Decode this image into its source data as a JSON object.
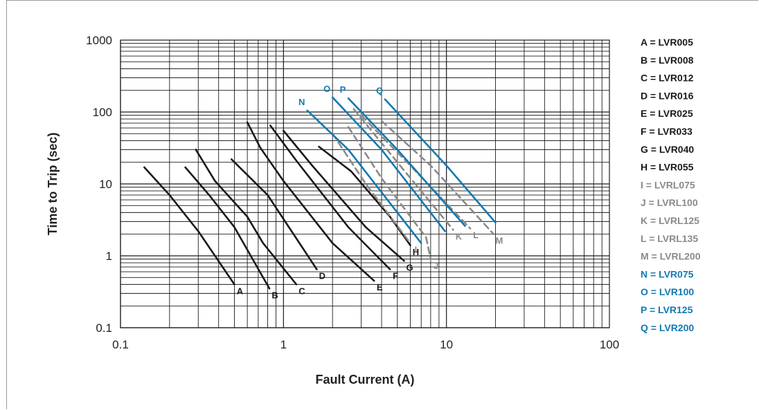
{
  "chart_data": {
    "type": "line",
    "x_scale": "log",
    "y_scale": "log",
    "xlim": [
      0.1,
      100
    ],
    "ylim": [
      0.1,
      1000
    ],
    "xlabel": "Fault Current (A)",
    "ylabel": "Time to Trip (sec)",
    "x_ticks": [
      "0.1",
      "1",
      "10",
      "100"
    ],
    "y_ticks": [
      "0.1",
      "1",
      "10",
      "100",
      "1000"
    ],
    "grid": true,
    "legend_position": "right",
    "colors": {
      "black": "#1a1a1a",
      "gray": "#8a8a8a",
      "blue": "#1279b2"
    },
    "series": [
      {
        "letter": "A",
        "legend": "A = LVR005",
        "color_group": "black",
        "dashed": false,
        "points": [
          [
            0.14,
            17
          ],
          [
            0.2,
            7
          ],
          [
            0.3,
            2.2
          ],
          [
            0.5,
            0.4
          ]
        ]
      },
      {
        "letter": "B",
        "legend": "B = LVR008",
        "color_group": "black",
        "dashed": false,
        "points": [
          [
            0.25,
            17
          ],
          [
            0.35,
            7
          ],
          [
            0.5,
            2.5
          ],
          [
            0.82,
            0.35
          ]
        ]
      },
      {
        "letter": "C",
        "legend": "C = LVR012",
        "color_group": "black",
        "dashed": false,
        "points": [
          [
            0.29,
            30
          ],
          [
            0.38,
            11
          ],
          [
            0.6,
            3.5
          ],
          [
            0.75,
            1.5
          ],
          [
            1.2,
            0.4
          ]
        ]
      },
      {
        "letter": "D",
        "legend": "D = LVR016",
        "color_group": "black",
        "dashed": false,
        "points": [
          [
            0.48,
            22
          ],
          [
            0.8,
            7
          ],
          [
            1.6,
            0.65
          ]
        ]
      },
      {
        "letter": "E",
        "legend": "E = LVR025",
        "color_group": "black",
        "dashed": false,
        "points": [
          [
            0.6,
            72
          ],
          [
            0.72,
            32
          ],
          [
            1.0,
            11
          ],
          [
            2.0,
            1.5
          ],
          [
            3.6,
            0.45
          ]
        ]
      },
      {
        "letter": "F",
        "legend": "F = LVR033",
        "color_group": "black",
        "dashed": false,
        "points": [
          [
            0.83,
            65
          ],
          [
            1.2,
            21
          ],
          [
            2.5,
            2.5
          ],
          [
            4.5,
            0.65
          ]
        ]
      },
      {
        "letter": "G",
        "legend": "G = LVR040",
        "color_group": "black",
        "dashed": false,
        "points": [
          [
            1.0,
            55
          ],
          [
            1.5,
            18
          ],
          [
            3.2,
            2.5
          ],
          [
            5.5,
            0.85
          ]
        ]
      },
      {
        "letter": "H",
        "legend": "H = LVR055",
        "color_group": "black",
        "dashed": false,
        "points": [
          [
            1.65,
            33
          ],
          [
            2.6,
            15
          ],
          [
            4.5,
            3.5
          ],
          [
            6.0,
            1.4
          ]
        ]
      },
      {
        "letter": "I",
        "legend": "I = LVRL075",
        "color_group": "gray",
        "dashed": true,
        "points": [
          [
            2.0,
            50
          ],
          [
            3.2,
            10
          ],
          [
            6.0,
            1.5
          ]
        ]
      },
      {
        "letter": "J",
        "legend": "J = LVRL100",
        "color_group": "gray",
        "dashed": true,
        "points": [
          [
            2.5,
            62
          ],
          [
            4.0,
            12
          ],
          [
            7.5,
            1.8
          ],
          [
            8.0,
            0.9
          ]
        ]
      },
      {
        "letter": "K",
        "legend": "K = LVRL125",
        "color_group": "gray",
        "dashed": true,
        "points": [
          [
            2.7,
            110
          ],
          [
            5.0,
            20
          ],
          [
            11.0,
            2.3
          ]
        ]
      },
      {
        "letter": "L",
        "legend": "L = LVRL135",
        "color_group": "gray",
        "dashed": true,
        "points": [
          [
            3.0,
            90
          ],
          [
            6.0,
            18
          ],
          [
            14.0,
            2.4
          ]
        ]
      },
      {
        "letter": "M",
        "legend": "M = LVRL200",
        "color_group": "gray",
        "dashed": true,
        "points": [
          [
            4.0,
            75
          ],
          [
            8.0,
            18
          ],
          [
            19.5,
            2.0
          ]
        ]
      },
      {
        "letter": "N",
        "legend": "N = LVR075",
        "color_group": "blue",
        "dashed": false,
        "points": [
          [
            1.4,
            105
          ],
          [
            2.5,
            30
          ],
          [
            7.0,
            1.5
          ]
        ]
      },
      {
        "letter": "O",
        "legend": "O = LVR100",
        "color_group": "blue",
        "dashed": false,
        "points": [
          [
            2.0,
            160
          ],
          [
            4.0,
            30
          ],
          [
            9.8,
            2.2
          ]
        ]
      },
      {
        "letter": "P",
        "legend": "P = LVR125",
        "color_group": "blue",
        "dashed": false,
        "points": [
          [
            2.5,
            155
          ],
          [
            5.0,
            30
          ],
          [
            13.0,
            2.6
          ]
        ]
      },
      {
        "letter": "Q",
        "legend": "Q = LVR200",
        "color_group": "blue",
        "dashed": false,
        "points": [
          [
            4.2,
            150
          ],
          [
            10.0,
            18
          ],
          [
            20.0,
            2.9
          ]
        ]
      }
    ]
  }
}
